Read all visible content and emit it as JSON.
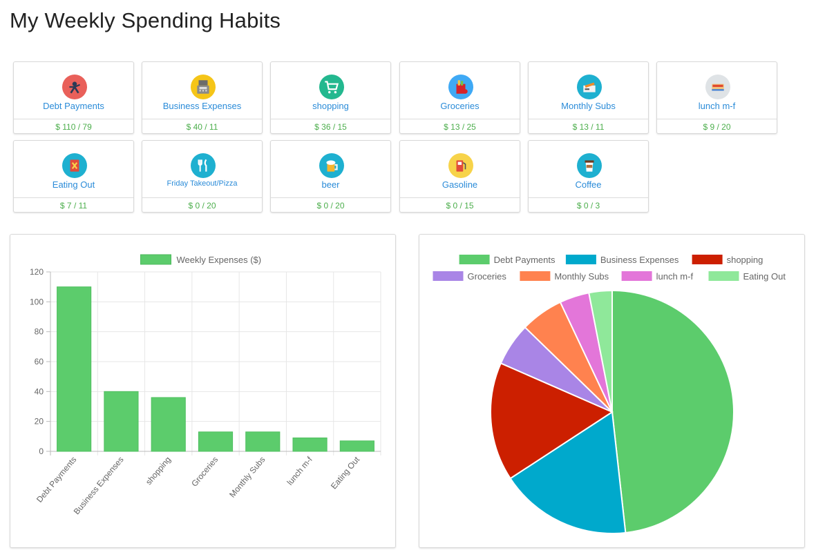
{
  "page": {
    "title": "My Weekly Spending Habits"
  },
  "categories": [
    {
      "name": "Debt Payments",
      "amount": "$ 110 / 79",
      "icon": "debt-icon",
      "color": "#e9605a"
    },
    {
      "name": "Business Expenses",
      "amount": "$ 40 / 11",
      "icon": "cash-register-icon",
      "color": "#f5c518"
    },
    {
      "name": "shopping",
      "amount": "$ 36 / 15",
      "icon": "shopping-cart-icon",
      "color": "#23b88f"
    },
    {
      "name": "Groceries",
      "amount": "$ 13 / 25",
      "icon": "grocery-bag-icon",
      "color": "#3fa9f5"
    },
    {
      "name": "Monthly Subs",
      "amount": "$ 13 / 11",
      "icon": "subscription-icon",
      "color": "#1eb0d0"
    },
    {
      "name": "lunch m-f",
      "amount": "$ 9 / 20",
      "icon": "lunch-icon",
      "color": "#dfe3e6"
    },
    {
      "name": "Eating Out",
      "amount": "$ 7 / 11",
      "icon": "menu-book-icon",
      "color": "#1eb0d0"
    },
    {
      "name": "Friday Takeout/Pizza",
      "amount": "$ 0 / 20",
      "icon": "fork-knife-icon",
      "color": "#1eb0d0"
    },
    {
      "name": "beer",
      "amount": "$ 0 / 20",
      "icon": "beer-mug-icon",
      "color": "#1eb0d0"
    },
    {
      "name": "Gasoline",
      "amount": "$ 0 / 15",
      "icon": "gas-pump-icon",
      "color": "#f7d34a"
    },
    {
      "name": "Coffee",
      "amount": "$ 0 / 3",
      "icon": "coffee-cup-icon",
      "color": "#1eb0d0"
    }
  ],
  "chart_data": [
    {
      "type": "bar",
      "title": "",
      "legend": {
        "label": "Weekly Expenses ($)",
        "placement": "top"
      },
      "categories": [
        "Debt Payments",
        "Business Expenses",
        "shopping",
        "Groceries",
        "Monthly Subs",
        "lunch m-f",
        "Eating Out"
      ],
      "values": [
        110,
        40,
        36,
        13,
        13,
        9,
        7
      ],
      "ylim": [
        0,
        120
      ],
      "yticks": [
        0,
        20,
        40,
        60,
        80,
        100,
        120
      ],
      "color": "#5ccc6c",
      "grid": true
    },
    {
      "type": "pie",
      "title": "",
      "legend": {
        "placement": "top"
      },
      "labels": [
        "Debt Payments",
        "Business Expenses",
        "shopping",
        "Groceries",
        "Monthly Subs",
        "lunch m-f",
        "Eating Out"
      ],
      "values": [
        110,
        40,
        36,
        13,
        13,
        9,
        7
      ],
      "colors": [
        "#5ccc6c",
        "#00a9cc",
        "#cc1f00",
        "#a985e6",
        "#ff824f",
        "#e376d9",
        "#8fe89a"
      ]
    }
  ]
}
